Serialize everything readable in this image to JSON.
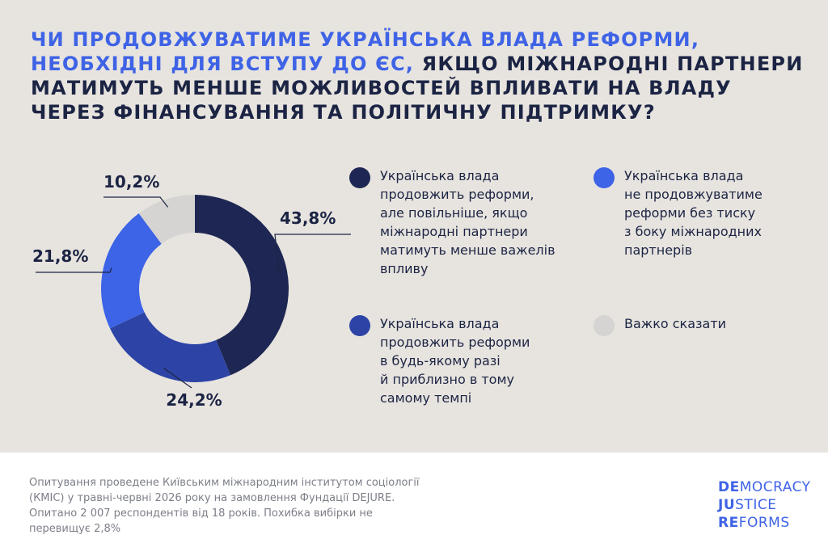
{
  "title": {
    "highlight": "Чи продовжуватиме українська влада реформи, необхідні для вступу до ЄС,",
    "rest": " якщо міжнародні партнери матимуть менше можливостей впливати на владу через фінансування та політичну підтримку?"
  },
  "colors": {
    "background": "#e7e4df",
    "dark_navy": "#1e2753",
    "royal_blue": "#2d44a6",
    "bright_blue": "#3d63e6",
    "light_gray": "#d5d4d2",
    "title_text": "#1c2444",
    "accent": "#3f63e6"
  },
  "chart_data": {
    "type": "pie",
    "donut": true,
    "slices": [
      {
        "label": "Українська влада продовжить реформи, але повільніше, якщо міжнародні партнери матимуть менше важелів впливу",
        "value": 43.8,
        "display": "43,8%",
        "color": "#1e2753"
      },
      {
        "label": "Українська влада продовжить реформи в будь-якому разі й приблизно в тому самому темпі",
        "value": 24.2,
        "display": "24,2%",
        "color": "#2d44a6"
      },
      {
        "label": "Українська влада не продовжуватиме реформи без тиску з боку міжнародних партнерів",
        "value": 21.8,
        "display": "21,8%",
        "color": "#3d63e6"
      },
      {
        "label": "Важко сказати",
        "value": 10.2,
        "display": "10,2%",
        "color": "#d5d4d2"
      }
    ]
  },
  "legend": [
    {
      "text": "Українська влада\nпродовжить реформи,\nале повільніше, якщо\nміжнародні партнери\nматимуть менше важелів\nвпливу",
      "color": "#1e2753"
    },
    {
      "text": "Українська влада\nне продовжуватиме\nреформи без тиску\nз боку міжнародних\nпартнерів",
      "color": "#3d63e6"
    },
    {
      "text": "Українська влада\nпродовжить реформи\nв будь-якому разі\nй приблизно в тому\nсамому темпі",
      "color": "#2d44a6"
    },
    {
      "text": "Важко сказати",
      "color": "#d5d4d2"
    }
  ],
  "footnote": "Опитування проведене Київським міжнародним інститутом соціології (КМІС) у травні-червні 2026 року на замовлення Фундації DEJURE. Опитано 2 007 респондентів від 18 років. Похибка вибірки не перевищує 2,8%",
  "logo": {
    "lines": [
      {
        "bold": "DE",
        "rest": "MOCRACY"
      },
      {
        "bold": "JU",
        "rest": "STICE"
      },
      {
        "bold": "RE",
        "rest": "FORMS"
      }
    ]
  }
}
